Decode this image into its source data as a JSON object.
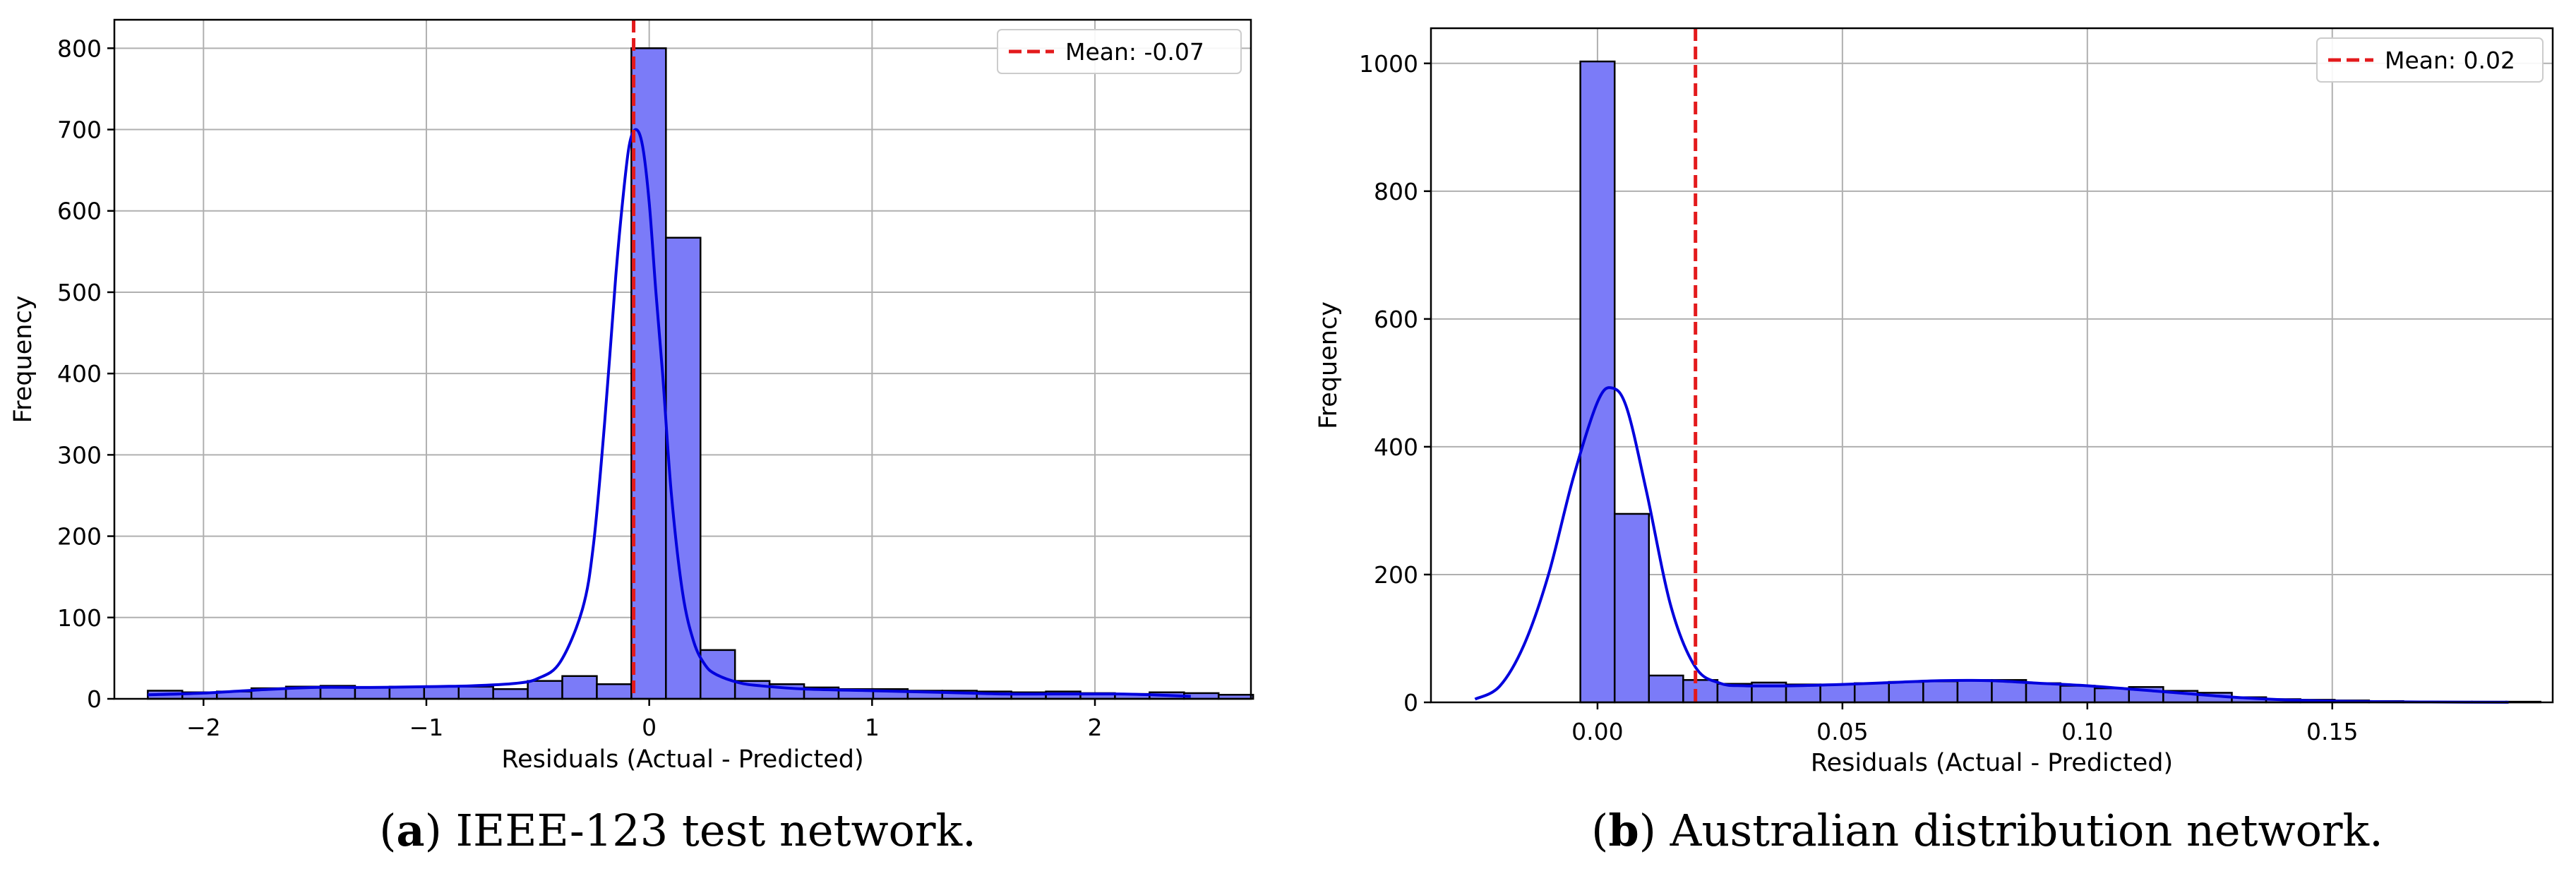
{
  "captions": [
    {
      "letter": "a",
      "text": "IEEE-123 test network."
    },
    {
      "letter": "b",
      "text": "Australian distribution network."
    }
  ],
  "colors": {
    "bar": "#7b7bf8",
    "bar_edge": "#000000",
    "kde": "#0000dd",
    "mean_line": "#e31a1c",
    "grid": "#b0b0b0"
  },
  "chart_data": [
    {
      "type": "bar",
      "subtype": "histogram",
      "xlabel": "Residuals (Actual - Predicted)",
      "ylabel": "Frequency",
      "xlim": [
        -2.4,
        2.7
      ],
      "ylim": [
        0,
        835
      ],
      "xticks": [
        -2,
        -1,
        0,
        1,
        2
      ],
      "xtick_labels": [
        "−2",
        "−1",
        "0",
        "1",
        "2"
      ],
      "yticks": [
        0,
        100,
        200,
        300,
        400,
        500,
        600,
        700,
        800
      ],
      "grid": true,
      "legend_position": "top-right",
      "mean": {
        "value": -0.07,
        "label": "Mean: -0.07"
      },
      "bins": {
        "start": -2.25,
        "width": 0.155
      },
      "values": [
        10,
        8,
        9,
        13,
        15,
        16,
        14,
        15,
        15,
        15,
        12,
        22,
        28,
        18,
        800,
        567,
        60,
        22,
        18,
        14,
        12,
        12,
        10,
        10,
        9,
        8,
        9,
        7,
        6,
        8,
        7,
        5
      ],
      "kde": {
        "x": [
          -2.25,
          -2.0,
          -1.75,
          -1.5,
          -1.25,
          -1.0,
          -0.8,
          -0.6,
          -0.5,
          -0.4,
          -0.3,
          -0.25,
          -0.2,
          -0.15,
          -0.12,
          -0.09,
          -0.06,
          -0.03,
          0.0,
          0.03,
          0.06,
          0.1,
          0.15,
          0.2,
          0.25,
          0.3,
          0.4,
          0.5,
          0.7,
          1.0,
          1.3,
          1.6,
          1.9,
          2.1,
          2.25,
          2.43
        ],
        "y": [
          5,
          7,
          11,
          14,
          14,
          15,
          16,
          19,
          25,
          45,
          110,
          190,
          340,
          520,
          610,
          680,
          700,
          680,
          610,
          500,
          400,
          250,
          130,
          70,
          42,
          30,
          20,
          16,
          12,
          10,
          8,
          6,
          6,
          6,
          5,
          3
        ]
      }
    },
    {
      "type": "bar",
      "subtype": "histogram",
      "xlabel": "Residuals (Actual - Predicted)",
      "ylabel": "Frequency",
      "xlim": [
        -0.034,
        0.195
      ],
      "ylim": [
        0,
        1055
      ],
      "xticks": [
        0.0,
        0.05,
        0.1,
        0.15
      ],
      "xtick_labels": [
        "0.00",
        "0.05",
        "0.10",
        "0.15"
      ],
      "yticks": [
        0,
        200,
        400,
        600,
        800,
        1000
      ],
      "grid": true,
      "legend_position": "top-right",
      "mean": {
        "value": 0.02,
        "label": "Mean: 0.02"
      },
      "bins": {
        "start": -0.0035,
        "width": 0.007
      },
      "values": [
        1003,
        295,
        42,
        35,
        29,
        31,
        28,
        28,
        30,
        32,
        33,
        35,
        35,
        30,
        26,
        22,
        24,
        18,
        15,
        8,
        5,
        4,
        3,
        2,
        1,
        1,
        1,
        1
      ],
      "kde": {
        "x": [
          -0.025,
          -0.02,
          -0.015,
          -0.01,
          -0.005,
          0.0,
          0.003,
          0.006,
          0.01,
          0.015,
          0.02,
          0.025,
          0.03,
          0.04,
          0.05,
          0.06,
          0.07,
          0.08,
          0.09,
          0.1,
          0.11,
          0.12,
          0.13,
          0.14,
          0.15,
          0.16,
          0.17,
          0.186
        ],
        "y": [
          5,
          25,
          90,
          200,
          350,
          470,
          492,
          460,
          330,
          150,
          55,
          30,
          26,
          26,
          28,
          31,
          34,
          34,
          30,
          26,
          20,
          14,
          8,
          4,
          2,
          1,
          0.5,
          0.2
        ]
      }
    }
  ]
}
